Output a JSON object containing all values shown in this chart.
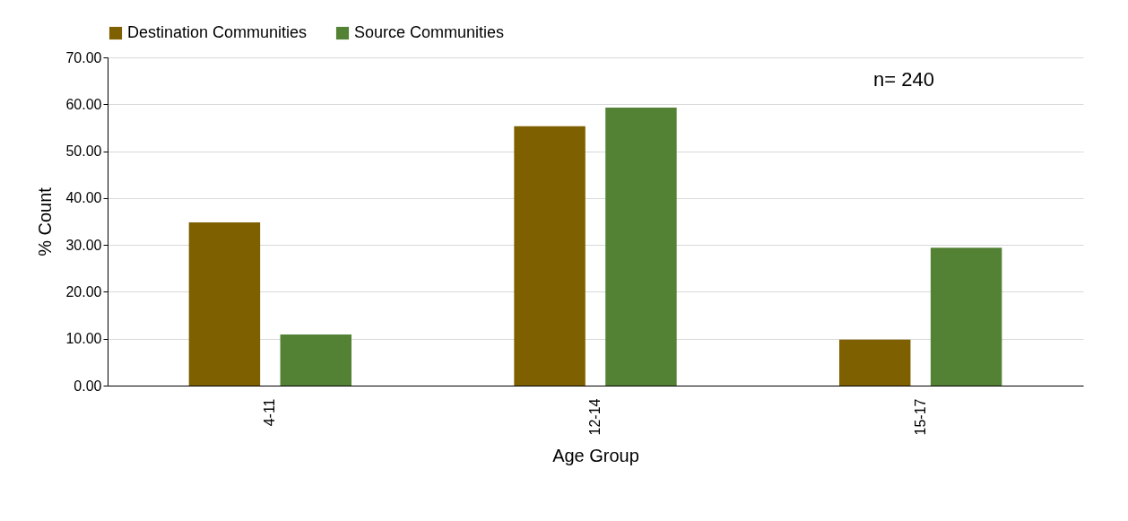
{
  "chart_data": {
    "type": "bar",
    "xlabel": "Age Group",
    "ylabel": "% Count",
    "categories": [
      "4-11",
      "12-14",
      "15-17"
    ],
    "series": [
      {
        "name": "Destination Communities",
        "color": "#7f6000",
        "values": [
          34.8,
          55.3,
          9.8
        ]
      },
      {
        "name": "Source Communities",
        "color": "#548235",
        "values": [
          10.9,
          59.3,
          29.4
        ]
      }
    ],
    "ylim": [
      0,
      70
    ],
    "yticks": [
      {
        "value": 0,
        "label": "0.00"
      },
      {
        "value": 10,
        "label": "10.00"
      },
      {
        "value": 20,
        "label": "20.00"
      },
      {
        "value": 30,
        "label": "30.00"
      },
      {
        "value": 40,
        "label": "40.00"
      },
      {
        "value": 50,
        "label": "50.00"
      },
      {
        "value": 60,
        "label": "60.00"
      },
      {
        "value": 70,
        "label": "70.00"
      }
    ],
    "grid": "y",
    "legend": "top",
    "annotations": [
      "n= 240"
    ]
  }
}
